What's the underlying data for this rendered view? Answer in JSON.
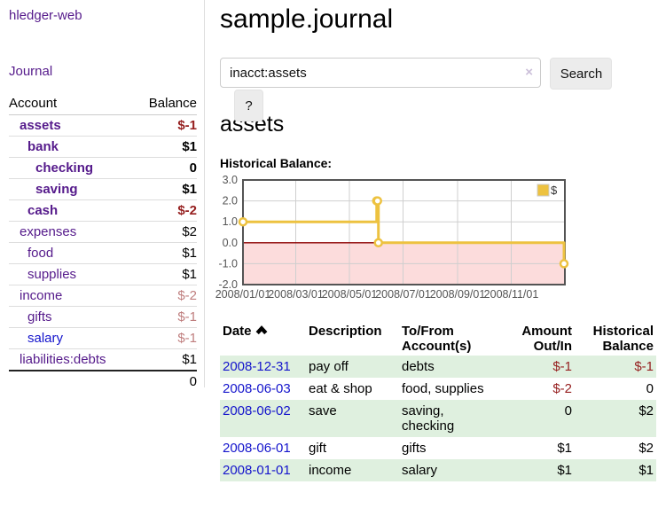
{
  "app": {
    "brand": "hledger-web",
    "nav_journal": "Journal"
  },
  "sidebar": {
    "header": {
      "account": "Account",
      "balance": "Balance"
    },
    "accounts": [
      {
        "name": "assets",
        "depth": 1,
        "bold": true,
        "balance": "$-1",
        "balance_style": "neg"
      },
      {
        "name": "bank",
        "depth": 2,
        "bold": true,
        "balance": "$1",
        "balance_style": "pos"
      },
      {
        "name": "checking",
        "depth": 3,
        "bold": true,
        "balance": "0",
        "balance_style": "pos"
      },
      {
        "name": "saving",
        "depth": 3,
        "bold": true,
        "balance": "$1",
        "balance_style": "pos"
      },
      {
        "name": "cash",
        "depth": 2,
        "bold": true,
        "balance": "$-2",
        "balance_style": "neg"
      },
      {
        "name": "expenses",
        "depth": 1,
        "bold": false,
        "balance": "$2",
        "balance_style": "pos"
      },
      {
        "name": "food",
        "depth": 2,
        "bold": false,
        "balance": "$1",
        "balance_style": "pos"
      },
      {
        "name": "supplies",
        "depth": 2,
        "bold": false,
        "balance": "$1",
        "balance_style": "pos"
      },
      {
        "name": "income",
        "depth": 1,
        "bold": false,
        "balance": "$-2",
        "balance_style": "negfade"
      },
      {
        "name": "gifts",
        "depth": 2,
        "bold": false,
        "balance": "$-1",
        "balance_style": "negfade"
      },
      {
        "name": "salary",
        "depth": 2,
        "bold": false,
        "balance": "$-1",
        "balance_style": "negfade",
        "link_color": "blue"
      },
      {
        "name": "liabilities:debts",
        "depth": 1,
        "bold": false,
        "balance": "$1",
        "balance_style": "pos"
      }
    ],
    "total": "0"
  },
  "header": {
    "title": "sample.journal"
  },
  "search": {
    "value": "inacct:assets",
    "clear_icon": "×",
    "button_label": "Search",
    "help_label": "?"
  },
  "main": {
    "account_title": "assets",
    "chart_label": "Historical Balance:"
  },
  "chart_data": {
    "type": "line",
    "title": "Historical Balance",
    "step": true,
    "legend": "$",
    "legend_position": "top-right",
    "x_range": [
      "2008-01-01",
      "2009-01-01"
    ],
    "ylim": [
      -2.0,
      3.0
    ],
    "y_ticks": [
      "3.0",
      "2.0",
      "1.0",
      "0.0",
      "-1.0",
      "-2.0"
    ],
    "x_ticks": [
      {
        "day": 0,
        "label": "2008/01/01"
      },
      {
        "day": 60,
        "label": "2008/03/01"
      },
      {
        "day": 121,
        "label": "2008/05/01"
      },
      {
        "day": 182,
        "label": "2008/07/01"
      },
      {
        "day": 244,
        "label": "2008/09/01"
      },
      {
        "day": 305,
        "label": "2008/11/01"
      }
    ],
    "series": [
      {
        "name": "$",
        "points": [
          {
            "date": "2008-01-01",
            "day": 0,
            "value": 1
          },
          {
            "date": "2008-06-01",
            "day": 152,
            "value": 2
          },
          {
            "date": "2008-06-02",
            "day": 153,
            "value": 2
          },
          {
            "date": "2008-06-03",
            "day": 154,
            "value": 0
          },
          {
            "date": "2008-12-31",
            "day": 365,
            "value": -1
          }
        ]
      }
    ],
    "colors": {
      "line": "#edc240",
      "marker_fill": "#ffffff",
      "negative_region": "#fcdcdc",
      "zero_line": "#8b0000",
      "grid": "#cfcfcf",
      "border": "#545454",
      "tick_text": "#545454"
    },
    "grid": true
  },
  "register": {
    "columns": [
      {
        "label": "Date",
        "sorted": "asc"
      },
      {
        "label": "Description"
      },
      {
        "label": "To/From Account(s)"
      },
      {
        "label": "Amount Out/In"
      },
      {
        "label": "Historical Balance"
      }
    ],
    "rows": [
      {
        "date": "2008-12-31",
        "description": "pay off",
        "accounts": "debts",
        "amount": "$-1",
        "amount_style": "neg",
        "historical": "$-1",
        "historical_style": "neg"
      },
      {
        "date": "2008-06-03",
        "description": "eat & shop",
        "accounts": "food, supplies",
        "amount": "$-2",
        "amount_style": "neg",
        "historical": "0",
        "historical_style": "pos"
      },
      {
        "date": "2008-06-02",
        "description": "save",
        "accounts": "saving, checking",
        "amount": "0",
        "amount_style": "pos",
        "historical": "$2",
        "historical_style": "pos"
      },
      {
        "date": "2008-06-01",
        "description": "gift",
        "accounts": "gifts",
        "amount": "$1",
        "amount_style": "pos",
        "historical": "$2",
        "historical_style": "pos"
      },
      {
        "date": "2008-01-01",
        "description": "income",
        "accounts": "salary",
        "amount": "$1",
        "amount_style": "pos",
        "historical": "$1",
        "historical_style": "pos"
      }
    ]
  }
}
